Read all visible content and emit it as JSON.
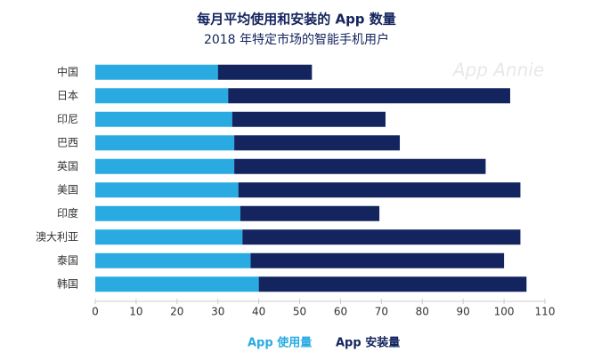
{
  "chart_data": {
    "type": "stacked_barh",
    "title": "每月平均使用和安装的 App 数量",
    "subtitle": "2018 年特定市场的智能手机用户",
    "watermark": "App Annie",
    "categories": [
      "中国",
      "日本",
      "印尼",
      "巴西",
      "英国",
      "美国",
      "印度",
      "澳大利亚",
      "泰国",
      "韩国"
    ],
    "series": [
      {
        "name": "App 使用量",
        "color": "#29abe2",
        "values": [
          30,
          32.5,
          33.5,
          34,
          34,
          35,
          35.5,
          36,
          38,
          40
        ]
      },
      {
        "name": "App 安装量",
        "color": "#13245e",
        "values": [
          23,
          69,
          37.5,
          40.5,
          61.5,
          69,
          34,
          68,
          62,
          65.5
        ]
      }
    ],
    "xlim": [
      0,
      110
    ],
    "xticks": [
      0,
      10,
      20,
      30,
      40,
      50,
      60,
      70,
      80,
      90,
      100,
      110
    ],
    "legend": "bottom"
  }
}
